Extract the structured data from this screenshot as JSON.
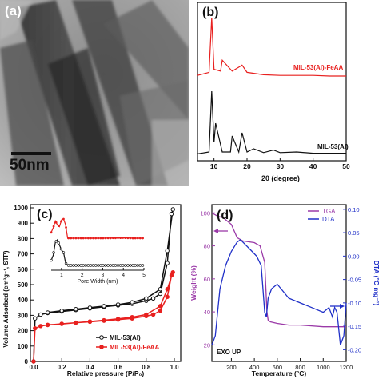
{
  "panels": {
    "a": {
      "letter": "(a)",
      "scale_bar_label": "50nm"
    },
    "b": {
      "letter": "(b)",
      "upper_label": "MIL-53(Al)-FeAA",
      "lower_label": "MIL-53(Al)",
      "xlabel": "2θ (degree)",
      "x_ticks": [
        "10",
        "20",
        "30",
        "40",
        "50"
      ]
    },
    "c": {
      "letter": "(c)",
      "ylabel": "Volume Adsorbed (cm³g⁻¹, STP)",
      "xlabel": "Relative pressure (P/P₀)",
      "y_ticks": [
        "0",
        "100",
        "200",
        "300",
        "400",
        "500",
        "600",
        "700",
        "800",
        "900",
        "1000"
      ],
      "x_ticks": [
        "0.0",
        "0.2",
        "0.4",
        "0.6",
        "0.8",
        "1.0"
      ],
      "inset_xlabel": "Pore Width (nm)",
      "inset_x_ticks": [
        "1",
        "2",
        "3",
        "4",
        "5"
      ],
      "legend": [
        "MIL-53(Al)",
        "MIL-53(Al)-FeAA"
      ]
    },
    "d": {
      "letter": "(d)",
      "ylabel_left": "Weight (%)",
      "ylabel_right": "DTA (°C mg⁻¹)",
      "xlabel": "Temperature (°C)",
      "y_left_ticks": [
        "20",
        "40",
        "60",
        "80",
        "100"
      ],
      "y_right_ticks": [
        "-0.20",
        "-0.15",
        "-0.10",
        "-0.05",
        "0.00",
        "0.05",
        "0.10"
      ],
      "x_ticks": [
        "200",
        "400",
        "600",
        "800",
        "1000",
        "1200"
      ],
      "legend": [
        "TGA",
        "DTA"
      ],
      "annotation": "EXO UP"
    }
  },
  "colors": {
    "red": "#e8201f",
    "black": "#111111",
    "purple": "#9b3aa8",
    "blue": "#2030c8"
  },
  "chart_data": [
    {
      "type": "line",
      "panel": "b",
      "xlabel": "2θ (degree)",
      "xlim": [
        5,
        50
      ],
      "series": [
        {
          "name": "MIL-53(Al)-FeAA",
          "x": [
            5,
            8.5,
            9.3,
            10,
            12,
            12.5,
            15.5,
            18,
            18.5,
            20,
            25,
            30,
            35,
            40,
            45,
            50
          ],
          "y": [
            0.05,
            0.1,
            1.0,
            0.15,
            0.12,
            0.3,
            0.12,
            0.2,
            0.22,
            0.1,
            0.06,
            0.05,
            0.05,
            0.05,
            0.04,
            0.04
          ]
        },
        {
          "name": "MIL-53(Al)",
          "x": [
            5,
            8.5,
            9.3,
            10,
            10.5,
            12.5,
            15,
            15.5,
            17.5,
            18.5,
            20,
            22,
            25,
            28,
            30,
            35,
            40,
            45,
            50
          ],
          "y": [
            0.02,
            0.05,
            1.0,
            0.2,
            0.5,
            0.05,
            0.05,
            0.3,
            0.05,
            0.35,
            0.05,
            0.1,
            0.04,
            0.08,
            0.04,
            0.05,
            0.03,
            0.03,
            0.03
          ]
        }
      ]
    },
    {
      "type": "line",
      "panel": "c",
      "xlabel": "Relative pressure (P/P₀)",
      "ylabel": "Volume Adsorbed (cm³g⁻¹, STP)",
      "xlim": [
        0,
        1.0
      ],
      "ylim": [
        0,
        1000
      ],
      "series": [
        {
          "name": "MIL-53(Al)",
          "x": [
            0.0,
            0.01,
            0.05,
            0.1,
            0.2,
            0.3,
            0.4,
            0.5,
            0.6,
            0.7,
            0.8,
            0.85,
            0.9,
            0.95,
            0.98,
            0.99,
            0.95,
            0.9,
            0.8,
            0.7,
            0.6,
            0.5,
            0.4,
            0.3,
            0.2,
            0.1
          ],
          "y": [
            0,
            280,
            305,
            315,
            325,
            335,
            345,
            355,
            365,
            375,
            395,
            410,
            440,
            640,
            960,
            990,
            720,
            470,
            410,
            385,
            370,
            360,
            350,
            340,
            330,
            318
          ]
        },
        {
          "name": "MIL-53(Al)-FeAA",
          "x": [
            0.0,
            0.01,
            0.05,
            0.1,
            0.2,
            0.3,
            0.4,
            0.5,
            0.6,
            0.7,
            0.8,
            0.85,
            0.9,
            0.95,
            0.98,
            0.99,
            0.95,
            0.9,
            0.8,
            0.7,
            0.6,
            0.5,
            0.4,
            0.3,
            0.2,
            0.1
          ],
          "y": [
            0,
            215,
            230,
            237,
            245,
            252,
            258,
            265,
            272,
            280,
            295,
            305,
            330,
            420,
            560,
            580,
            470,
            360,
            305,
            288,
            277,
            268,
            260,
            252,
            244,
            238
          ]
        }
      ]
    },
    {
      "type": "line",
      "panel": "c-inset",
      "xlabel": "Pore Width (nm)",
      "xlim": [
        0.5,
        5
      ],
      "series": [
        {
          "name": "MIL-53(Al)-FeAA",
          "x": [
            0.5,
            0.6,
            0.7,
            0.8,
            0.9,
            1.0,
            1.1,
            1.2,
            1.3,
            1.5,
            2,
            3,
            4,
            4.5,
            5
          ],
          "y": [
            0.3,
            0.55,
            0.9,
            0.7,
            0.6,
            0.95,
            1.0,
            0.7,
            0.0,
            0.0,
            0.0,
            0.0,
            0.02,
            0.0,
            0.0
          ]
        },
        {
          "name": "MIL-53(Al)",
          "x": [
            0.5,
            0.6,
            0.7,
            0.8,
            0.9,
            1.0,
            1.1,
            1.2,
            1.3,
            1.5,
            2,
            3,
            4,
            5
          ],
          "y": [
            0.2,
            0.4,
            0.9,
            1.0,
            0.8,
            0.6,
            0.5,
            0.1,
            0.0,
            0.0,
            0.0,
            0.0,
            0.0,
            0.0
          ]
        }
      ]
    },
    {
      "type": "line",
      "panel": "d",
      "xlabel": "Temperature (°C)",
      "xlim": [
        30,
        1200
      ],
      "series": [
        {
          "name": "TGA",
          "axis": "left",
          "x": [
            30,
            80,
            130,
            200,
            250,
            300,
            400,
            450,
            490,
            500,
            510,
            520,
            540,
            600,
            700,
            800,
            1000,
            1200
          ],
          "y": [
            100,
            98,
            97,
            93,
            85,
            83,
            82,
            80,
            70,
            55,
            40,
            35,
            34,
            33,
            32,
            32,
            31,
            31
          ]
        },
        {
          "name": "DTA",
          "axis": "right",
          "x": [
            30,
            60,
            100,
            150,
            200,
            250,
            280,
            320,
            380,
            420,
            460,
            490,
            505,
            520,
            550,
            600,
            700,
            800,
            900,
            1000,
            1050,
            1080,
            1100,
            1120,
            1150,
            1180,
            1200
          ],
          "y": [
            -0.19,
            -0.17,
            -0.07,
            -0.02,
            0.01,
            0.03,
            0.035,
            0.025,
            0.01,
            0.0,
            -0.02,
            -0.12,
            -0.13,
            -0.09,
            -0.07,
            -0.06,
            -0.09,
            -0.1,
            -0.11,
            -0.12,
            -0.11,
            -0.13,
            -0.11,
            -0.12,
            -0.19,
            -0.17,
            -0.1
          ]
        }
      ]
    }
  ]
}
